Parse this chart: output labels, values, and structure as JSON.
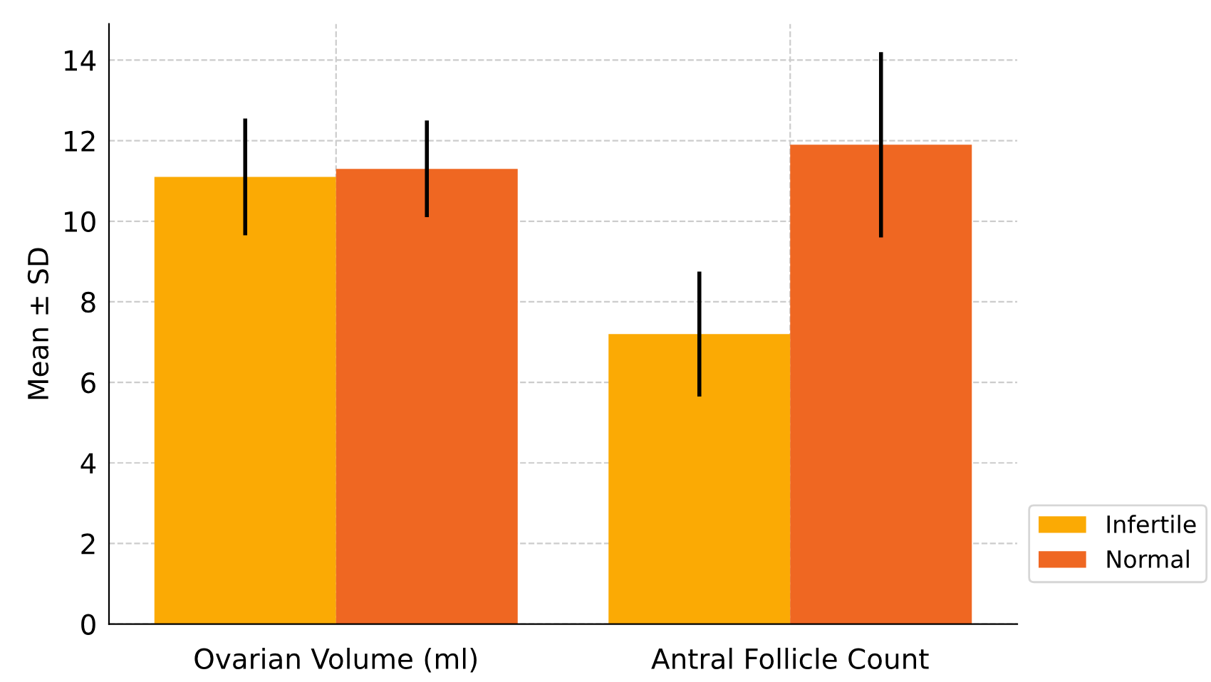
{
  "chart_data": {
    "type": "bar",
    "ylabel": "Mean ± SD",
    "categories": [
      "Ovarian Volume (ml)",
      "Antral Follicle Count"
    ],
    "series": [
      {
        "name": "Infertile",
        "color": "#fbaa04",
        "values": [
          11.1,
          7.2
        ],
        "errors": [
          1.45,
          1.55
        ]
      },
      {
        "name": "Normal",
        "color": "#ef6722",
        "values": [
          11.3,
          11.9
        ],
        "errors": [
          1.2,
          2.3
        ]
      }
    ],
    "ylim": [
      0,
      14.9
    ],
    "yticks": [
      0,
      2,
      4,
      6,
      8,
      10,
      12,
      14
    ],
    "grid": true,
    "legend": "bottom right"
  }
}
